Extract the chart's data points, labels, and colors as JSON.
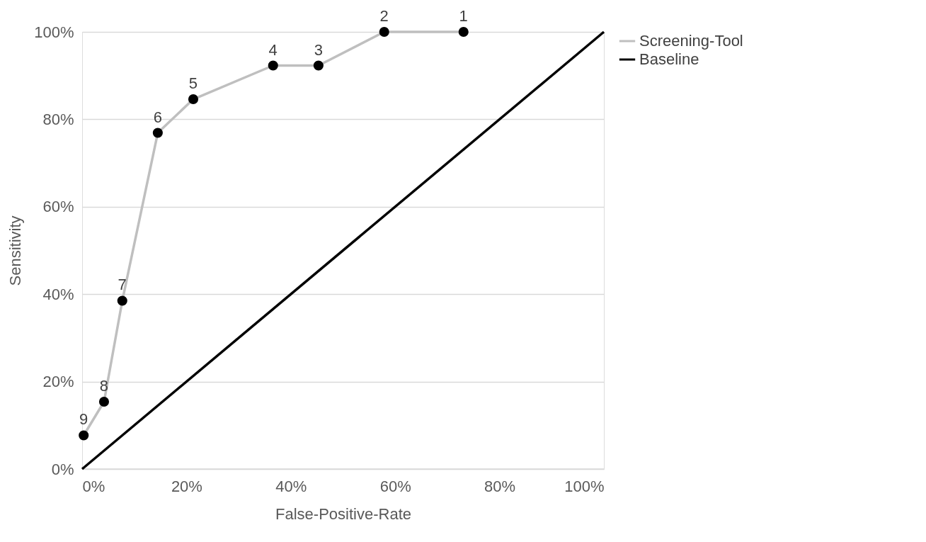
{
  "chart_data": {
    "type": "line",
    "xlabel": "False-Positive-Rate",
    "ylabel": "Sensitivity",
    "series": [
      {
        "name": "Screening-Tool",
        "color": "#bfbfbf",
        "marker": "circle",
        "x": [
          0.3,
          4.2,
          7.7,
          14.5,
          21.3,
          36.6,
          45.3,
          57.9,
          73.1
        ],
        "values": [
          7.7,
          15.4,
          38.5,
          76.9,
          84.6,
          92.3,
          92.3,
          100,
          100
        ]
      },
      {
        "name": "Baseline",
        "color": "#000000",
        "marker": "none",
        "x": [
          0,
          100
        ],
        "values": [
          0,
          100
        ]
      }
    ],
    "annotations": [
      {
        "text": "9",
        "x": 0.3,
        "y": 7.7
      },
      {
        "text": "8",
        "x": 4.2,
        "y": 15.4
      },
      {
        "text": "7",
        "x": 7.7,
        "y": 38.5
      },
      {
        "text": "6",
        "x": 14.5,
        "y": 76.9
      },
      {
        "text": "5",
        "x": 21.3,
        "y": 84.6
      },
      {
        "text": "4",
        "x": 36.6,
        "y": 92.3
      },
      {
        "text": "3",
        "x": 45.3,
        "y": 92.3
      },
      {
        "text": "2",
        "x": 57.9,
        "y": 100
      },
      {
        "text": "1",
        "x": 73.1,
        "y": 100
      }
    ],
    "xlim": [
      0,
      100
    ],
    "ylim": [
      0,
      100
    ],
    "xticks": [
      {
        "value": 0,
        "label": "0%"
      },
      {
        "value": 20,
        "label": "20%"
      },
      {
        "value": 40,
        "label": "40%"
      },
      {
        "value": 60,
        "label": "60%"
      },
      {
        "value": 80,
        "label": "80%"
      },
      {
        "value": 100,
        "label": "100%"
      }
    ],
    "yticks": [
      {
        "value": 0,
        "label": "0%"
      },
      {
        "value": 20,
        "label": "20%"
      },
      {
        "value": 40,
        "label": "40%"
      },
      {
        "value": 60,
        "label": "60%"
      },
      {
        "value": 80,
        "label": "80%"
      },
      {
        "value": 100,
        "label": "100%"
      }
    ],
    "grid": "y",
    "legend": "right",
    "line_style": "solid"
  }
}
